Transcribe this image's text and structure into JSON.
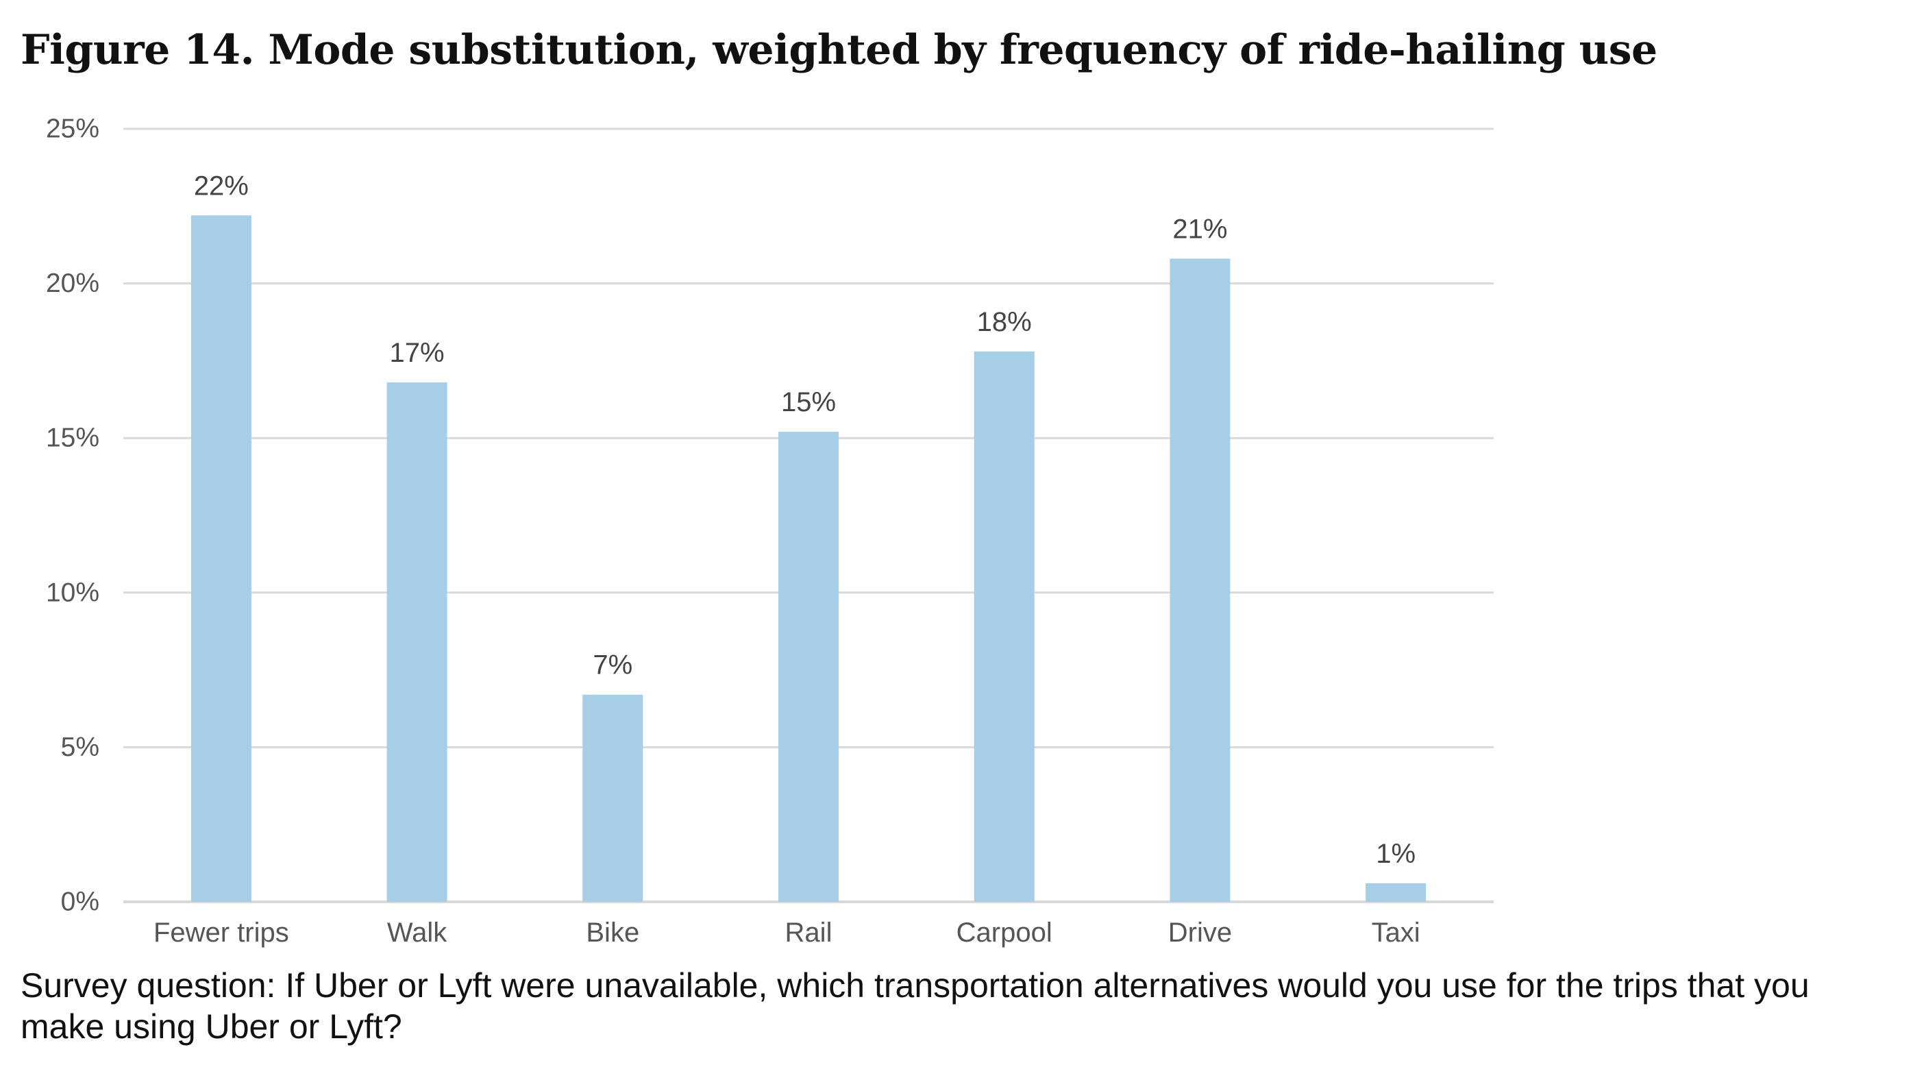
{
  "figure": {
    "title": "Figure 14. Mode substitution, weighted by frequency of ride-hailing use",
    "caption": "Survey question: If Uber or Lyft were unavailable, which transportation alternatives would you use for the trips that you make using Uber or Lyft?"
  },
  "colors": {
    "bar": "#a6cee6",
    "grid": "#d9d9d9",
    "axis_text": "#555555",
    "data_label": "#444444"
  },
  "chart_data": {
    "type": "bar",
    "title": "",
    "xlabel": "",
    "ylabel": "",
    "categories": [
      "Fewer trips",
      "Walk",
      "Bike",
      "Rail",
      "Carpool",
      "Drive",
      "Taxi"
    ],
    "values": [
      22.2,
      16.8,
      6.7,
      15.2,
      17.8,
      20.8,
      0.6
    ],
    "data_labels": [
      "22%",
      "17%",
      "7%",
      "15%",
      "18%",
      "21%",
      "1%"
    ],
    "ylim": [
      0,
      25
    ],
    "yticks": [
      0,
      5,
      10,
      15,
      20,
      25
    ],
    "ytick_labels": [
      "0%",
      "5%",
      "10%",
      "15%",
      "20%",
      "25%"
    ],
    "grid": true,
    "legend": "none"
  }
}
